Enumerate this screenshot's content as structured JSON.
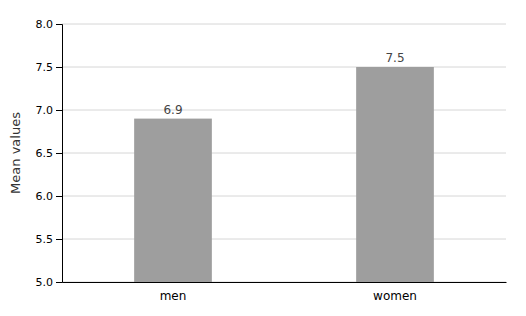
{
  "chart_data": {
    "type": "bar",
    "categories": [
      "men",
      "women"
    ],
    "values": [
      6.9,
      7.5
    ],
    "color": "#9e9e9e",
    "ylabel": "Mean values",
    "ylim": [
      5,
      8
    ],
    "yticks": [
      {
        "value": 5,
        "label": "5.0"
      },
      5.5,
      {
        "value": 6,
        "label": "6.0"
      },
      6.5,
      {
        "value": 7,
        "label": "7.0"
      },
      7.5,
      {
        "value": 8,
        "label": "8.0"
      }
    ],
    "grid": true,
    "data_labels": true
  }
}
